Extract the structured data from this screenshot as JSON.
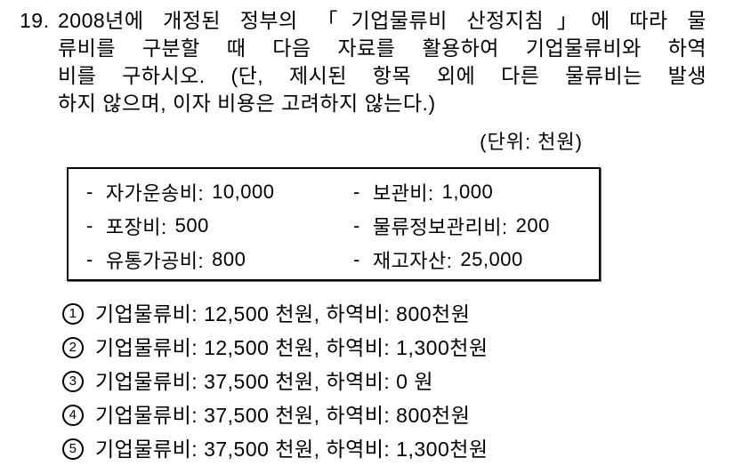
{
  "question": {
    "number": "19.",
    "lines": [
      "2008년에 개정된 정부의 「기업물류비 산정지침」에 따라 물",
      "류비를 구분할 때 다음 자료를 활용하여 기업물류비와 하역",
      "비를 구하시오. (단, 제시된 항목 외에 다른 물류비는 발생",
      "하지 않으며, 이자 비용은 고려하지 않는다.)"
    ]
  },
  "unit_label": "(단위: 천원)",
  "cost_box": {
    "bullet": "-",
    "left_items": [
      {
        "label": "자가운송비:",
        "value": "10,000"
      },
      {
        "label": "포장비:",
        "value": "500"
      },
      {
        "label": "유통가공비:",
        "value": "800"
      }
    ],
    "right_items": [
      {
        "label": "보관비:",
        "value": "1,000"
      },
      {
        "label": "물류정보관리비:",
        "value": "200"
      },
      {
        "label": "재고자산:",
        "value": "25,000"
      }
    ]
  },
  "choices": [
    {
      "num": "1",
      "text": "기업물류비: 12,500 천원, 하역비: 800천원"
    },
    {
      "num": "2",
      "text": "기업물류비: 12,500 천원, 하역비: 1,300천원"
    },
    {
      "num": "3",
      "text": "기업물류비: 37,500 천원, 하역비: 0 원"
    },
    {
      "num": "4",
      "text": "기업물류비: 37,500 천원, 하역비: 800천원"
    },
    {
      "num": "5",
      "text": "기업물류비: 37,500 천원, 하역비: 1,300천원"
    }
  ],
  "colors": {
    "text": "#000000",
    "background": "#ffffff"
  }
}
